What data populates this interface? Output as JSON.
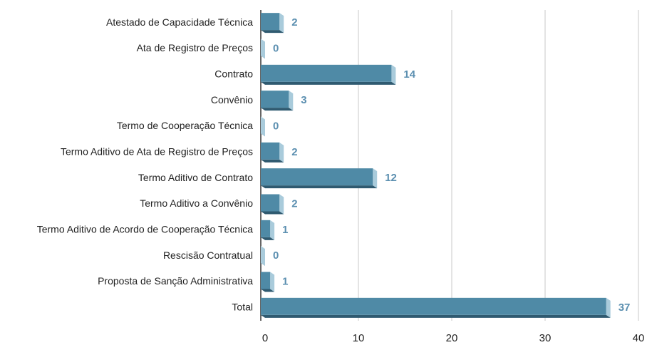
{
  "chart_data": {
    "type": "bar",
    "orientation": "horizontal",
    "categories": [
      "Atestado de Capacidade Técnica",
      "Ata de Registro de Preços",
      "Contrato",
      "Convênio",
      "Termo de Cooperação Técnica",
      "Termo Aditivo de Ata de Registro de Preços",
      "Termo Aditivo de Contrato",
      "Termo Aditivo a Convênio",
      "Termo Aditivo de Acordo de Cooperação Técnica",
      "Rescisão Contratual",
      "Proposta de Sanção Administrativa",
      "Total"
    ],
    "values": [
      2,
      0,
      14,
      3,
      0,
      2,
      12,
      2,
      1,
      0,
      1,
      37
    ],
    "color": "#4f8aa6",
    "xlim": [
      0,
      40
    ],
    "xticks": [
      0,
      10,
      20,
      30,
      40
    ],
    "grid": true
  }
}
